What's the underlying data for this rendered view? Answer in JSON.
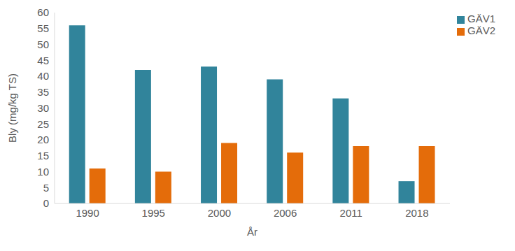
{
  "chart_data": {
    "type": "bar",
    "x_label": "År",
    "y_label": "Bly (mg/kg TS)",
    "categories": [
      "1990",
      "1995",
      "2000",
      "2006",
      "2011",
      "2018"
    ],
    "series": [
      {
        "name": "GÄV1",
        "color": "#31849b",
        "values": [
          56,
          42,
          43,
          39,
          33,
          7
        ]
      },
      {
        "name": "GÄV2",
        "color": "#e46c0a",
        "values": [
          11,
          10,
          19,
          16,
          18,
          18
        ]
      }
    ],
    "ylim": [
      0,
      60
    ],
    "yticks": [
      0,
      5,
      10,
      15,
      20,
      25,
      30,
      35,
      40,
      45,
      50,
      55,
      60
    ],
    "grid": false,
    "legend": "right"
  }
}
